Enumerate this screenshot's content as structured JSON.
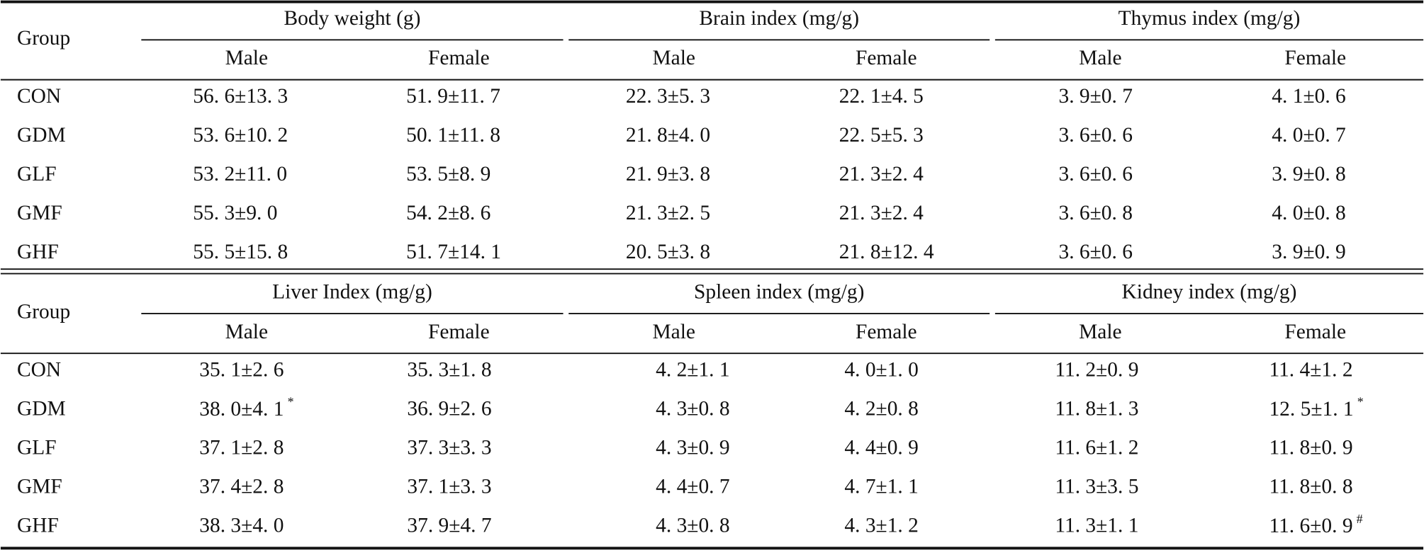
{
  "tables": [
    {
      "group_label": "Group",
      "column_groups": [
        "Body weight (g)",
        "Brain index (mg/g)",
        "Thymus index (mg/g)"
      ],
      "subheaders": [
        "Male",
        "Female",
        "Male",
        "Female",
        "Male",
        "Female"
      ],
      "rows": [
        {
          "group": "CON",
          "cells": [
            "56. 6±13. 3",
            "51. 9±11. 7",
            "22. 3±5. 3",
            "22. 1±4. 5",
            "3. 9±0. 7",
            "4. 1±0. 6"
          ]
        },
        {
          "group": "GDM",
          "cells": [
            "53. 6±10. 2",
            "50. 1±11. 8",
            "21. 8±4. 0",
            "22. 5±5. 3",
            "3. 6±0. 6",
            "4. 0±0. 7"
          ]
        },
        {
          "group": "GLF",
          "cells": [
            "53. 2±11. 0",
            "53. 5±8. 9",
            "21. 9±3. 8",
            "21. 3±2. 4",
            "3. 6±0. 6",
            "3. 9±0. 8"
          ]
        },
        {
          "group": "GMF",
          "cells": [
            "55. 3±9. 0",
            "54. 2±8. 6",
            "21. 3±2. 5",
            "21. 3±2. 4",
            "3. 6±0. 8",
            "4. 0±0. 8"
          ]
        },
        {
          "group": "GHF",
          "cells": [
            "55. 5±15. 8",
            "51. 7±14. 1",
            "20. 5±3. 8",
            "21. 8±12. 4",
            "3. 6±0. 6",
            "3. 9±0. 9"
          ]
        }
      ]
    },
    {
      "group_label": "Group",
      "column_groups": [
        "Liver Index (mg/g)",
        "Spleen index (mg/g)",
        "Kidney index (mg/g)"
      ],
      "subheaders": [
        "Male",
        "Female",
        "Male",
        "Female",
        "Male",
        "Female"
      ],
      "rows": [
        {
          "group": "CON",
          "cells": [
            "35. 1±2. 6",
            "35. 3±1. 8",
            "4. 2±1. 1",
            "4. 0±1. 0",
            "11. 2±0. 9",
            "11. 4±1. 2"
          ]
        },
        {
          "group": "GDM",
          "cells": [
            {
              "text": "38. 0±4. 1",
              "sup": "*"
            },
            "36. 9±2. 6",
            "4. 3±0. 8",
            "4. 2±0. 8",
            "11. 8±1. 3",
            {
              "text": "12. 5±1. 1",
              "sup": "*"
            }
          ]
        },
        {
          "group": "GLF",
          "cells": [
            "37. 1±2. 8",
            "37. 3±3. 3",
            "4. 3±0. 9",
            "4. 4±0. 9",
            "11. 6±1. 2",
            "11. 8±0. 9"
          ]
        },
        {
          "group": "GMF",
          "cells": [
            "37. 4±2. 8",
            "37. 1±3. 3",
            "4. 4±0. 7",
            "4. 7±1. 1",
            "11. 3±3. 5",
            "11. 8±0. 8"
          ]
        },
        {
          "group": "GHF",
          "cells": [
            "38. 3±4. 0",
            "37. 9±4. 7",
            "4. 3±0. 8",
            "4. 3±1. 2",
            "11. 3±1. 1",
            {
              "text": "11. 6±0. 9",
              "sup": "#"
            }
          ]
        }
      ]
    }
  ]
}
